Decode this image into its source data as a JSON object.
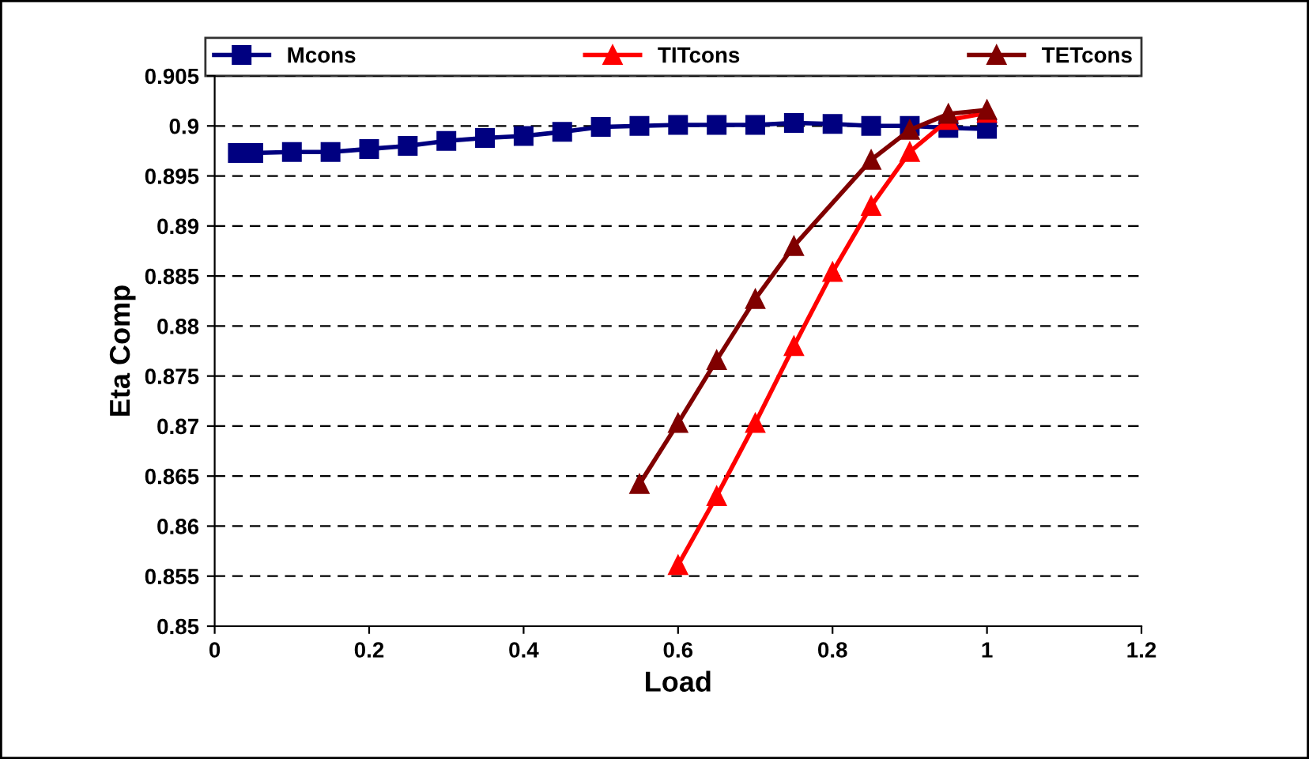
{
  "chart_data": {
    "type": "line",
    "xlabel": "Load",
    "ylabel": "Eta Comp",
    "xlim": [
      0,
      1.2
    ],
    "xticks": [
      0,
      0.2,
      0.4,
      0.6,
      0.8,
      1,
      1.2
    ],
    "ylim": [
      0.85,
      0.905
    ],
    "yticks": [
      0.85,
      0.855,
      0.86,
      0.865,
      0.87,
      0.875,
      0.88,
      0.885,
      0.89,
      0.895,
      0.9,
      0.905
    ],
    "grid": "y",
    "legend": "top",
    "line_style": "solid",
    "series": [
      {
        "name": "Mcons",
        "color": "#000080",
        "marker": "square",
        "x": [
          0.03,
          0.05,
          0.1,
          0.15,
          0.2,
          0.25,
          0.3,
          0.35,
          0.4,
          0.45,
          0.5,
          0.55,
          0.6,
          0.65,
          0.7,
          0.75,
          0.8,
          0.85,
          0.9,
          0.95,
          1.0
        ],
        "values": [
          0.8973,
          0.8973,
          0.8974,
          0.8974,
          0.8977,
          0.898,
          0.8985,
          0.8988,
          0.899,
          0.8994,
          0.8999,
          0.9,
          0.9001,
          0.9001,
          0.9001,
          0.9003,
          0.9002,
          0.9,
          0.9,
          0.8998,
          0.8997
        ]
      },
      {
        "name": "TITcons",
        "color": "#ff0000",
        "marker": "triangle",
        "x": [
          0.6,
          0.65,
          0.7,
          0.75,
          0.8,
          0.85,
          0.9,
          0.95,
          1.0
        ],
        "values": [
          0.8561,
          0.863,
          0.8703,
          0.878,
          0.8854,
          0.892,
          0.8974,
          0.9006,
          0.9013
        ]
      },
      {
        "name": "TETcons",
        "color": "#800000",
        "marker": "triangle",
        "x": [
          0.55,
          0.6,
          0.65,
          0.7,
          0.75,
          0.85,
          0.9,
          0.95,
          1.0
        ],
        "values": [
          0.8642,
          0.8703,
          0.8766,
          0.8827,
          0.888,
          0.8966,
          0.8996,
          0.9012,
          0.9016
        ]
      }
    ]
  }
}
